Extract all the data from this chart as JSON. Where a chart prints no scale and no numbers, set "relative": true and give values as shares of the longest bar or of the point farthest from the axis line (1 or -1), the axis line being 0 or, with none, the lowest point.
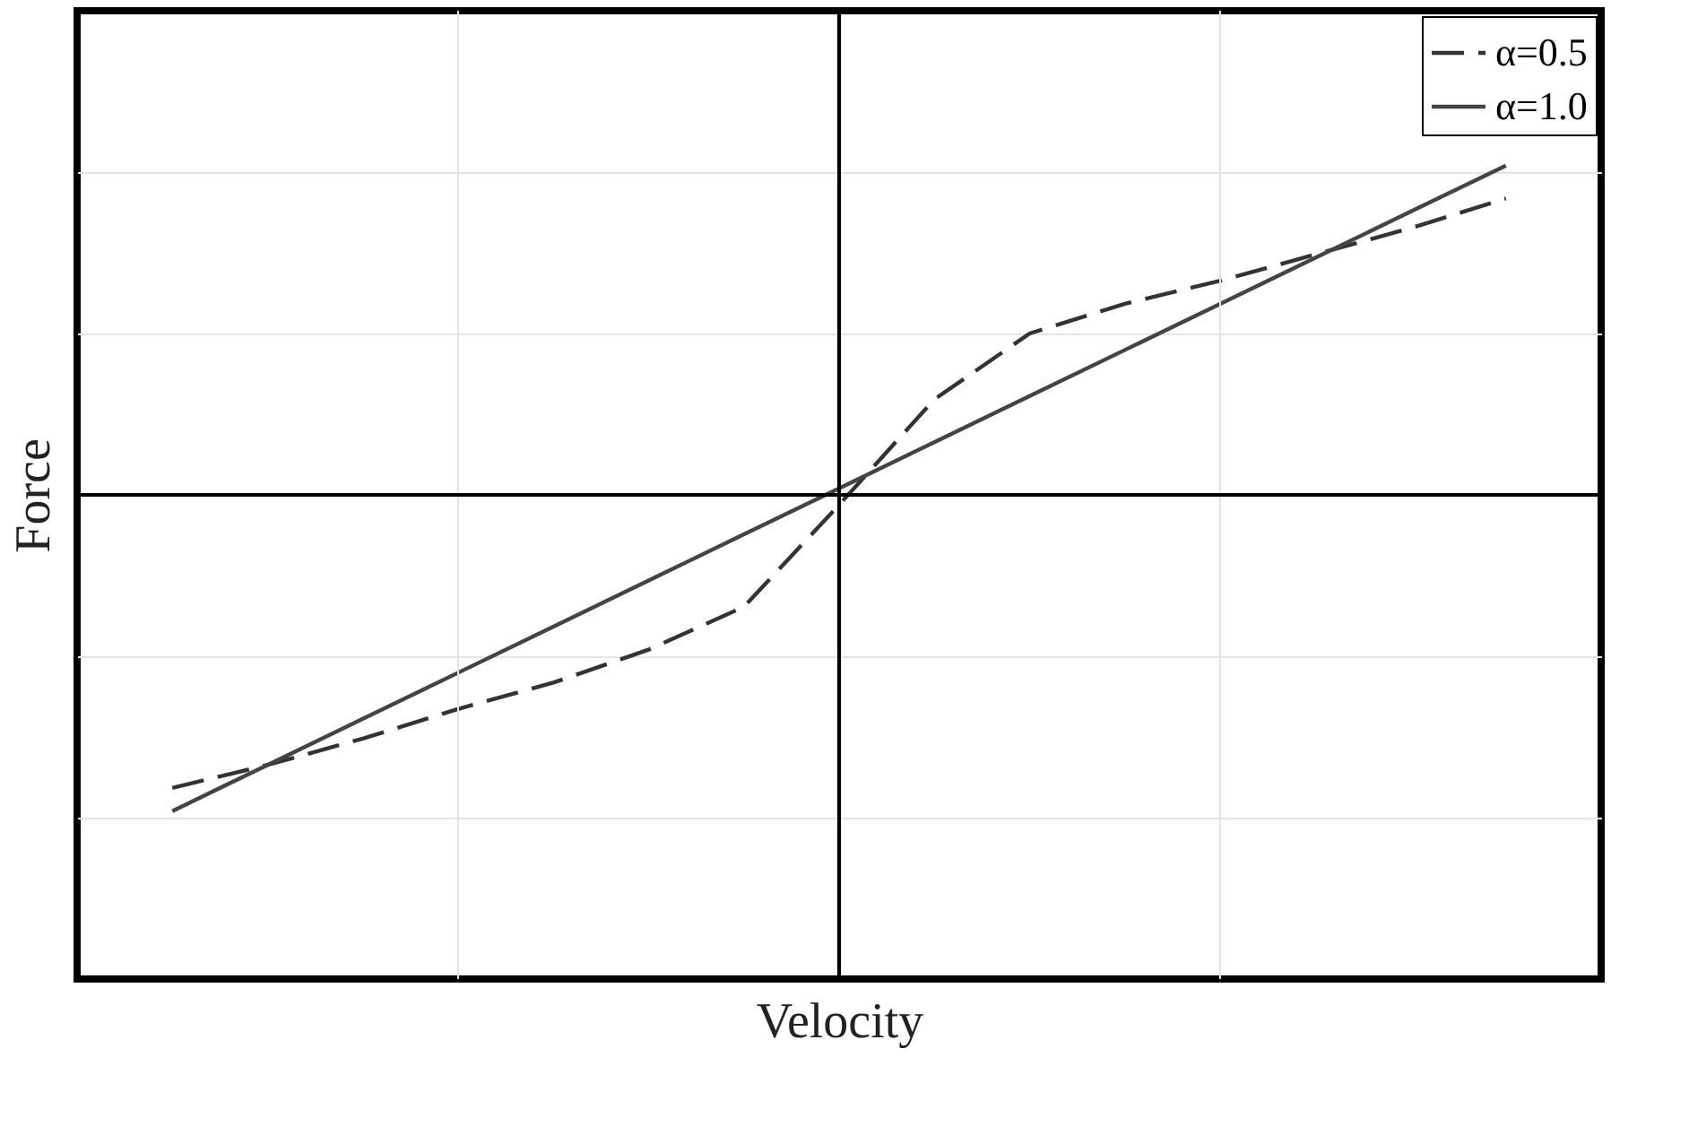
{
  "chart_data": {
    "type": "line",
    "xlabel": "Velocity",
    "ylabel": "Force",
    "relative": true,
    "grid": true,
    "legend": "top right",
    "categories": [
      null,
      null,
      null,
      null,
      null,
      null,
      null,
      null,
      null,
      null,
      null,
      null,
      null,
      null,
      null
    ],
    "series": [
      {
        "name": "α=0.5",
        "color": "#333333",
        "line_style": "dashed",
        "values": [
          -0.89,
          -0.82,
          -0.74,
          -0.65,
          -0.57,
          -0.47,
          -0.34,
          -0.03,
          0.29,
          0.49,
          0.58,
          0.65,
          0.73,
          0.81,
          0.9
        ]
      },
      {
        "name": "α=1.0",
        "color": "#444444",
        "line_style": "solid",
        "values": [
          -0.96,
          -0.82,
          -0.68,
          -0.54,
          -0.4,
          -0.26,
          -0.12,
          0.02,
          0.16,
          0.3,
          0.44,
          0.58,
          0.72,
          0.86,
          1.0
        ]
      }
    ]
  }
}
